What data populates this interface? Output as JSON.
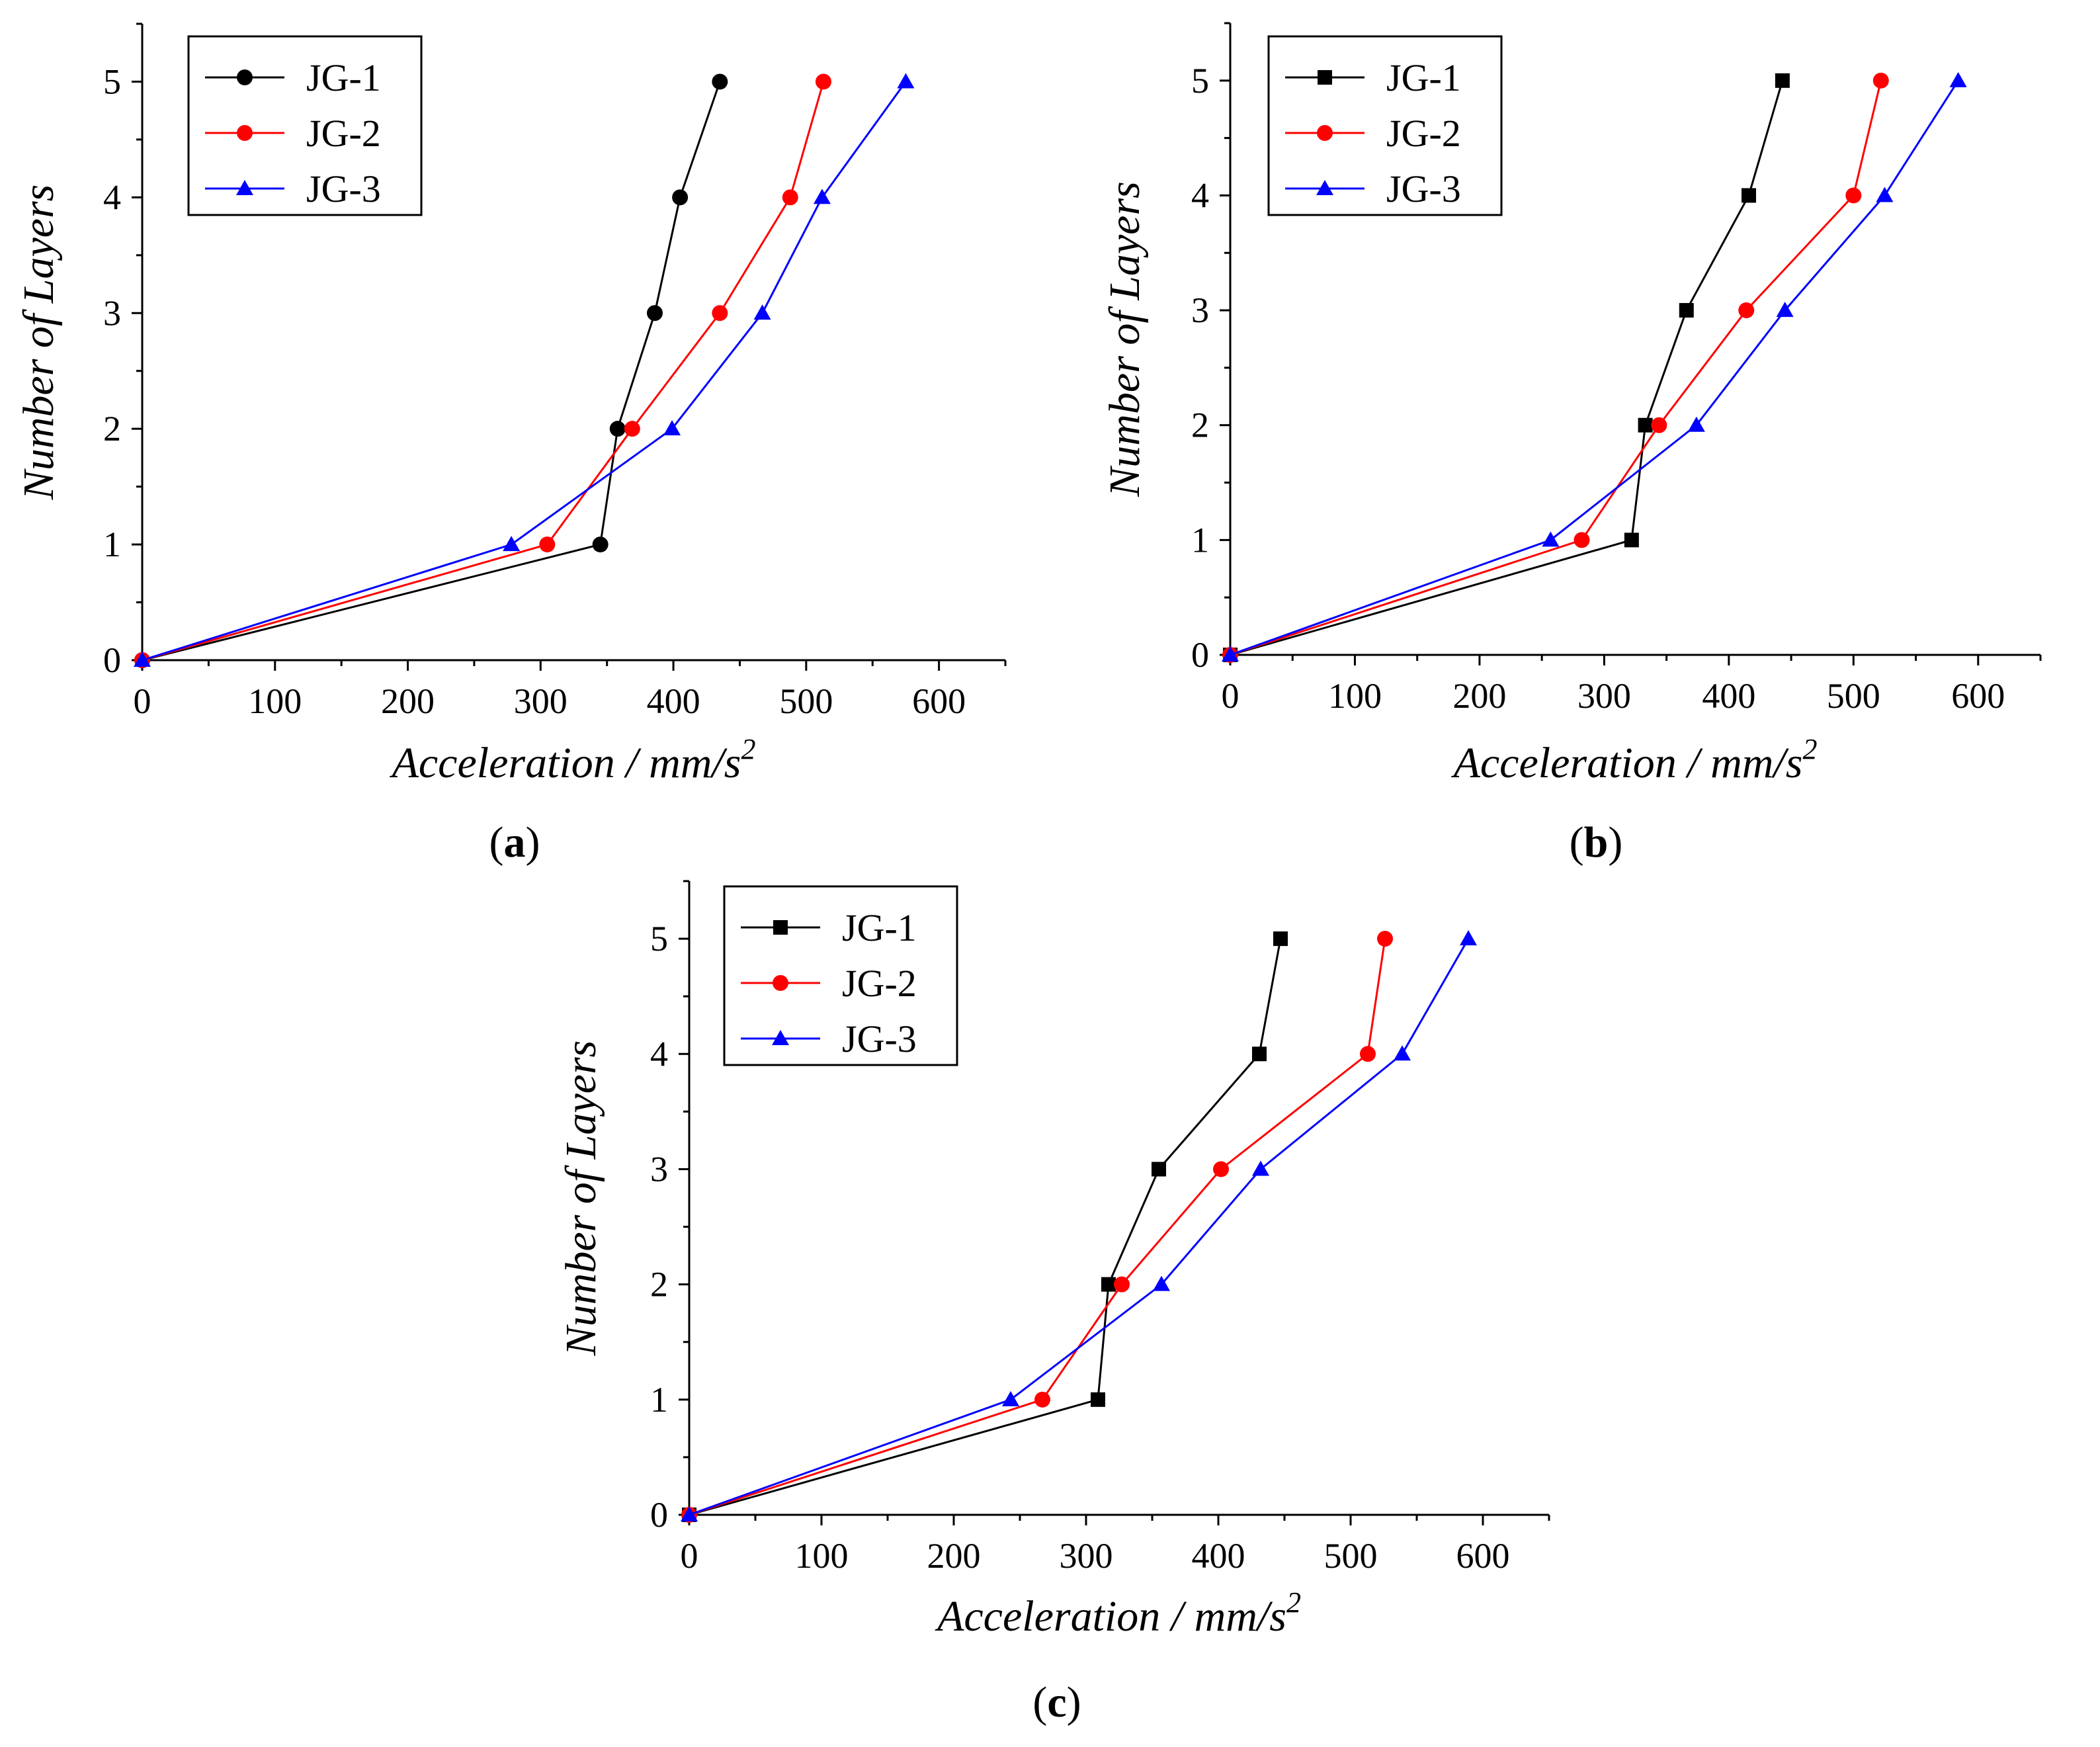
{
  "chart_data": [
    {
      "type": "line",
      "panel": "a",
      "caption_open": "(",
      "caption_letter": "a",
      "caption_close": ")",
      "xlabel": "Acceleration / mm/s",
      "xlabel_superscript": "2",
      "ylabel": "Number of Layers",
      "xlim": [
        0,
        650
      ],
      "ylim": [
        0,
        5.5
      ],
      "xticks": [
        "0",
        "100",
        "200",
        "300",
        "400",
        "500",
        "600"
      ],
      "yticks": [
        "0",
        "1",
        "2",
        "3",
        "4",
        "5"
      ],
      "legend_position": "top-left",
      "series": [
        {
          "name": "JG-1",
          "color": "#000000",
          "marker": "circle",
          "points": [
            [
              0,
              0
            ],
            [
              345,
              1
            ],
            [
              358,
              2
            ],
            [
              386,
              3
            ],
            [
              405,
              4
            ],
            [
              435,
              5
            ]
          ]
        },
        {
          "name": "JG-2",
          "color": "#ff0000",
          "marker": "circle",
          "points": [
            [
              0,
              0
            ],
            [
              305,
              1
            ],
            [
              369,
              2
            ],
            [
              435,
              3
            ],
            [
              488,
              4
            ],
            [
              513,
              5
            ]
          ]
        },
        {
          "name": "JG-3",
          "color": "#0000ff",
          "marker": "triangle",
          "points": [
            [
              0,
              0
            ],
            [
              278,
              1
            ],
            [
              399,
              2
            ],
            [
              467,
              3
            ],
            [
              512,
              4
            ],
            [
              575,
              5
            ]
          ]
        }
      ]
    },
    {
      "type": "line",
      "panel": "b",
      "caption_open": "(",
      "caption_letter": "b",
      "caption_close": ")",
      "xlabel": "Acceleration / mm/s",
      "xlabel_superscript": "2",
      "ylabel": "Number of Layers",
      "xlim": [
        0,
        650
      ],
      "ylim": [
        0,
        5.5
      ],
      "xticks": [
        "0",
        "100",
        "200",
        "300",
        "400",
        "500",
        "600"
      ],
      "yticks": [
        "0",
        "1",
        "2",
        "3",
        "4",
        "5"
      ],
      "legend_position": "top-left",
      "series": [
        {
          "name": "JG-1",
          "color": "#000000",
          "marker": "square",
          "points": [
            [
              0,
              0
            ],
            [
              322,
              1
            ],
            [
              333,
              2
            ],
            [
              366,
              3
            ],
            [
              416,
              4
            ],
            [
              443,
              5
            ]
          ]
        },
        {
          "name": "JG-2",
          "color": "#ff0000",
          "marker": "circle",
          "points": [
            [
              0,
              0
            ],
            [
              282,
              1
            ],
            [
              344,
              2
            ],
            [
              414,
              3
            ],
            [
              500,
              4
            ],
            [
              522,
              5
            ]
          ]
        },
        {
          "name": "JG-3",
          "color": "#0000ff",
          "marker": "triangle",
          "points": [
            [
              0,
              0
            ],
            [
              257,
              1
            ],
            [
              374,
              2
            ],
            [
              445,
              3
            ],
            [
              525,
              4
            ],
            [
              584,
              5
            ]
          ]
        }
      ]
    },
    {
      "type": "line",
      "panel": "c",
      "caption_open": "(",
      "caption_letter": "c",
      "caption_close": ")",
      "xlabel": "Acceleration / mm/s",
      "xlabel_superscript": "2",
      "ylabel": "Number of Layers",
      "xlim": [
        0,
        650
      ],
      "ylim": [
        0,
        5.5
      ],
      "xticks": [
        "0",
        "100",
        "200",
        "300",
        "400",
        "500",
        "600"
      ],
      "yticks": [
        "0",
        "1",
        "2",
        "3",
        "4",
        "5"
      ],
      "legend_position": "top-left",
      "series": [
        {
          "name": "JG-1",
          "color": "#000000",
          "marker": "square",
          "points": [
            [
              0,
              0
            ],
            [
              309,
              1
            ],
            [
              317,
              2
            ],
            [
              355,
              3
            ],
            [
              431,
              4
            ],
            [
              447,
              5
            ]
          ]
        },
        {
          "name": "JG-2",
          "color": "#ff0000",
          "marker": "circle",
          "points": [
            [
              0,
              0
            ],
            [
              267,
              1
            ],
            [
              327,
              2
            ],
            [
              402,
              3
            ],
            [
              513,
              4
            ],
            [
              526,
              5
            ]
          ]
        },
        {
          "name": "JG-3",
          "color": "#0000ff",
          "marker": "triangle",
          "points": [
            [
              0,
              0
            ],
            [
              243,
              1
            ],
            [
              357,
              2
            ],
            [
              432,
              3
            ],
            [
              539,
              4
            ],
            [
              589,
              5
            ]
          ]
        }
      ]
    }
  ]
}
